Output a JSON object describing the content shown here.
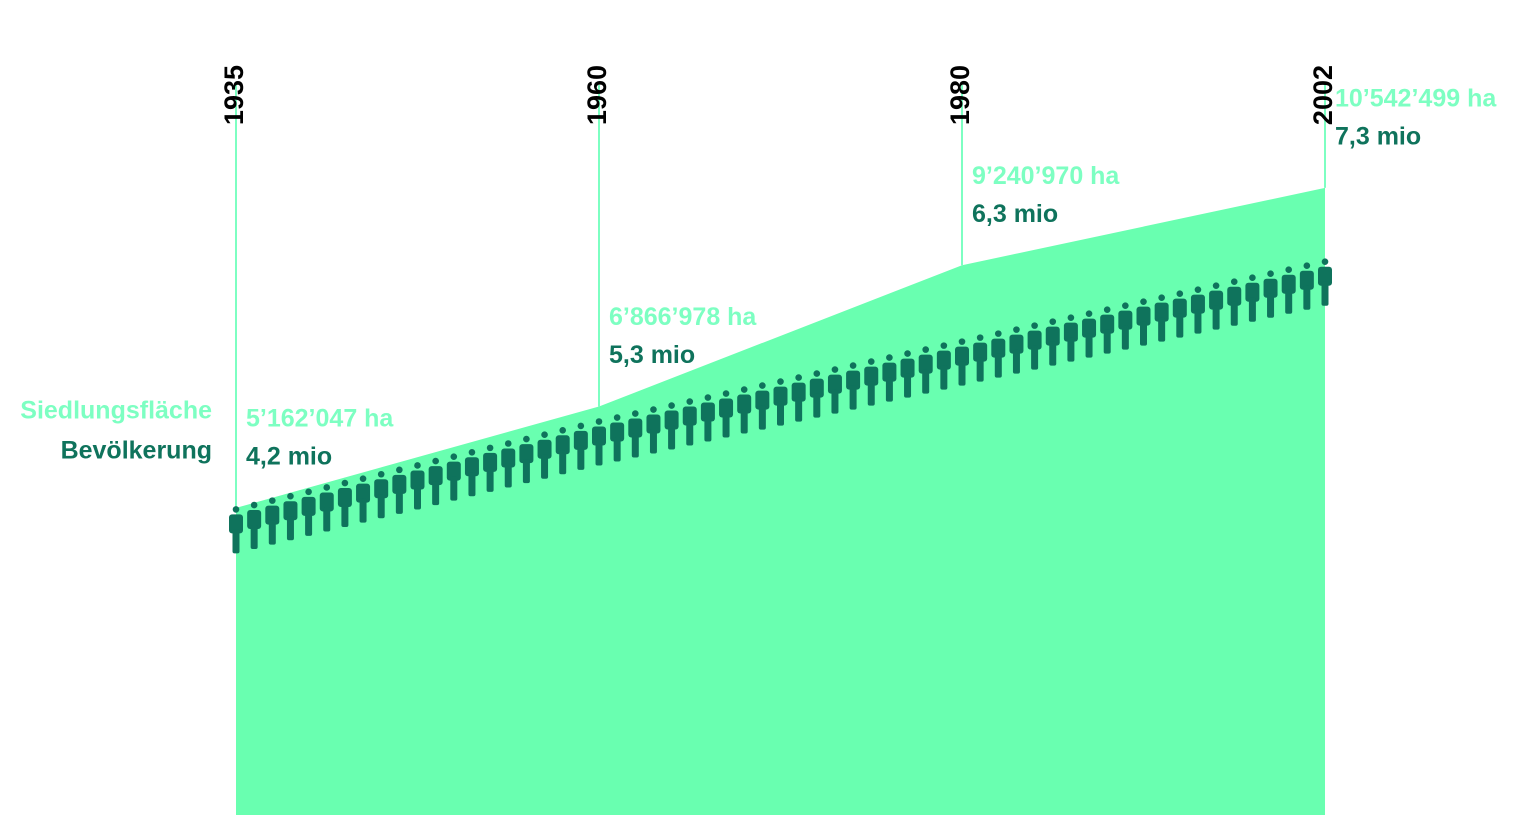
{
  "chart_data": {
    "type": "area",
    "categories": [
      "1935",
      "1960",
      "1980",
      "2002"
    ],
    "series": [
      {
        "name": "Siedlungsfläche",
        "color": "#69ffb0",
        "values": [
          5162047,
          6866978,
          9240970,
          10542499
        ],
        "value_labels": [
          "5’162’047 ha",
          "6’866’978 ha",
          "9’240’970 ha",
          "10’542’499 ha"
        ]
      },
      {
        "name": "Bevölkerung",
        "color": "#0f735c",
        "axis": "y2",
        "values": [
          4.2,
          5.3,
          6.3,
          7.3
        ],
        "value_labels": [
          "4,2 mio",
          "5,3 mio",
          "6,3 mio",
          "7,3 mio"
        ]
      }
    ],
    "ylim": [
      0,
      13700000
    ],
    "y2lim": [
      0,
      10.2
    ]
  }
}
